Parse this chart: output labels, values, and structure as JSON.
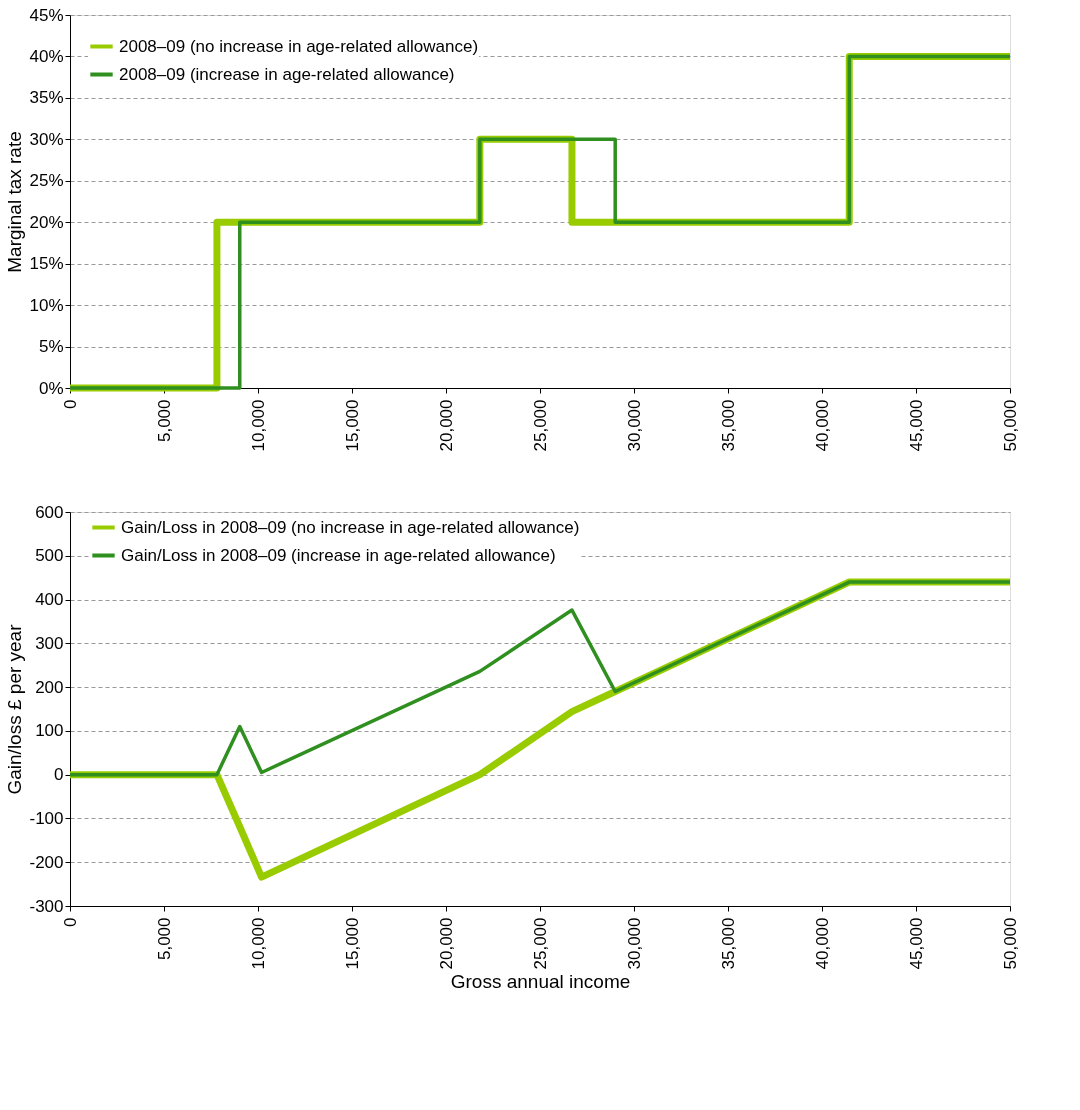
{
  "chart_data": [
    {
      "type": "step",
      "ylabel": "Marginal tax rate",
      "xlim": [
        0,
        50000
      ],
      "ylim": [
        0,
        45
      ],
      "grid": "y",
      "legend": "top left",
      "line_style": "solid",
      "marker": "none",
      "xticks": [
        0,
        {
          "value": 5000,
          "label": "5,000"
        },
        {
          "value": 10000,
          "label": "10,000"
        },
        {
          "value": 15000,
          "label": "15,000"
        },
        {
          "value": 20000,
          "label": "20,000"
        },
        {
          "value": 25000,
          "label": "25,000"
        },
        {
          "value": 30000,
          "label": "30,000"
        },
        {
          "value": 35000,
          "label": "35,000"
        },
        {
          "value": 40000,
          "label": "40,000"
        },
        {
          "value": 45000,
          "label": "45,000"
        },
        {
          "value": 50000,
          "label": "50,000"
        }
      ],
      "yticks": [
        {
          "value": 0,
          "label": "0%"
        },
        {
          "value": 5,
          "label": "5%"
        },
        {
          "value": 10,
          "label": "10%"
        },
        {
          "value": 15,
          "label": "15%"
        },
        {
          "value": 20,
          "label": "20%"
        },
        {
          "value": 25,
          "label": "25%"
        },
        {
          "value": 30,
          "label": "30%"
        },
        {
          "value": 35,
          "label": "35%"
        },
        {
          "value": 40,
          "label": "40%"
        },
        {
          "value": 45,
          "label": "45%"
        }
      ],
      "series": [
        {
          "name": "2008–09 (no increase in age-related allowance)",
          "color": "#99cc00",
          "x": [
            0,
            7815,
            21800,
            26700,
            41450,
            50000
          ],
          "values": [
            0,
            20,
            30,
            20,
            40,
            40
          ]
        },
        {
          "name": "2008–09 (increase in age-related allowance)",
          "color": "#2f8f1f",
          "x": [
            0,
            9030,
            21800,
            29000,
            41450,
            50000
          ],
          "values": [
            0,
            20,
            30,
            20,
            40,
            40
          ]
        }
      ]
    },
    {
      "type": "line",
      "ylabel": "Gain/loss £ per year",
      "xlabel": "Gross annual income",
      "xlim": [
        0,
        50000
      ],
      "ylim": [
        -300,
        600
      ],
      "grid": "y",
      "legend": "top",
      "line_style": "solid",
      "marker": "none",
      "xticks": [
        0,
        {
          "value": 5000,
          "label": "5,000"
        },
        {
          "value": 10000,
          "label": "10,000"
        },
        {
          "value": 15000,
          "label": "15,000"
        },
        {
          "value": 20000,
          "label": "20,000"
        },
        {
          "value": 25000,
          "label": "25,000"
        },
        {
          "value": 30000,
          "label": "30,000"
        },
        {
          "value": 35000,
          "label": "35,000"
        },
        {
          "value": 40000,
          "label": "40,000"
        },
        {
          "value": 45000,
          "label": "45,000"
        },
        {
          "value": 50000,
          "label": "50,000"
        }
      ],
      "yticks": [
        -300,
        -200,
        -100,
        0,
        100,
        200,
        300,
        400,
        500,
        600
      ],
      "series": [
        {
          "name": "Gain/Loss in 2008–09 (no increase in age-related allowance)",
          "color": "#99cc00",
          "x": [
            0,
            7815,
            9030,
            10190,
            21800,
            26700,
            29000,
            41450,
            50000
          ],
          "values": [
            0,
            0,
            -119,
            -234,
            0,
            144,
            190,
            440,
            440
          ]
        },
        {
          "name": "Gain/Loss in 2008–09 (increase in age-related allowance)",
          "color": "#2f8f1f",
          "x": [
            0,
            7815,
            9030,
            10190,
            21800,
            26700,
            29000,
            41450,
            50000
          ],
          "values": [
            0,
            0,
            110,
            5,
            236,
            376,
            190,
            440,
            440
          ]
        }
      ]
    }
  ]
}
